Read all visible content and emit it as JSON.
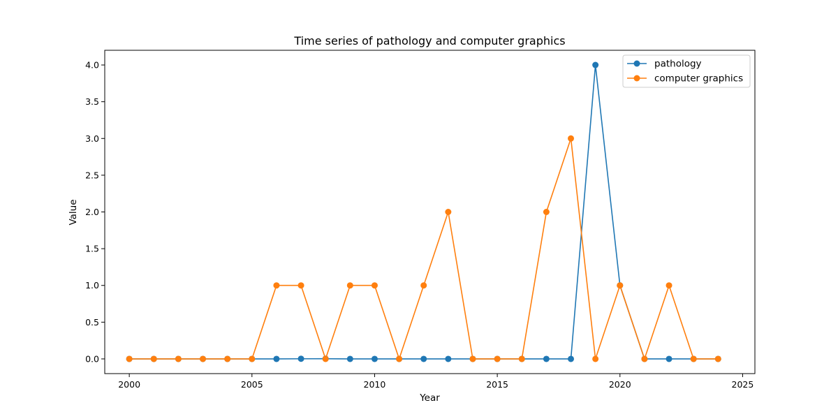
{
  "chart_data": {
    "type": "line",
    "title": "Time series of pathology and computer graphics",
    "xlabel": "Year",
    "ylabel": "Value",
    "x": [
      2000,
      2001,
      2002,
      2003,
      2004,
      2005,
      2006,
      2007,
      2008,
      2009,
      2010,
      2011,
      2012,
      2013,
      2014,
      2015,
      2016,
      2017,
      2018,
      2019,
      2020,
      2021,
      2022,
      2023,
      2024
    ],
    "xlim": [
      1999,
      2025.5
    ],
    "ylim": [
      -0.2,
      4.2
    ],
    "xticks": [
      2000,
      2005,
      2010,
      2015,
      2020,
      2025
    ],
    "yticks": [
      0.0,
      0.5,
      1.0,
      1.5,
      2.0,
      2.5,
      3.0,
      3.5,
      4.0
    ],
    "grid": false,
    "legend_position": "top-right",
    "series": [
      {
        "name": "pathology",
        "color": "#1f77b4",
        "marker": "circle",
        "values": [
          0,
          0,
          0,
          0,
          0,
          0,
          0,
          0.002,
          0.003,
          0,
          0,
          0,
          0,
          0,
          0,
          0,
          0,
          0,
          0,
          4.0,
          1.0,
          0,
          0,
          0,
          0
        ]
      },
      {
        "name": "computer graphics",
        "color": "#ff7f0e",
        "marker": "circle",
        "values": [
          0,
          0,
          0,
          0,
          0,
          0,
          1,
          1,
          0,
          1,
          1,
          0,
          1,
          2,
          0,
          0,
          0,
          2,
          3,
          0,
          1,
          0,
          1,
          0,
          0
        ]
      }
    ]
  }
}
